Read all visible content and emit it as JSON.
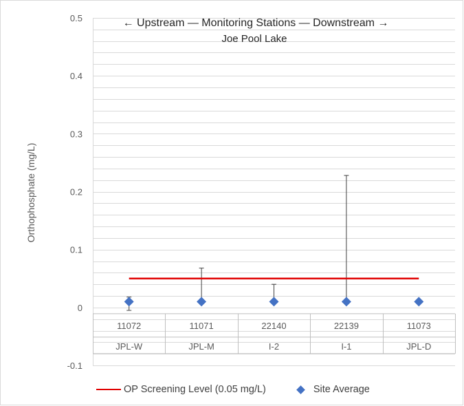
{
  "chart_data": {
    "type": "scatter",
    "title_line1": "← Upstream  —  Monitoring Stations  —  Downstream →",
    "title_line2": "Joe Pool Lake",
    "ylabel": "Orthophosphate (mg/L)",
    "ylim": [
      -0.1,
      0.5
    ],
    "yticks": [
      -0.1,
      0,
      0.1,
      0.2,
      0.3,
      0.4,
      0.5
    ],
    "ytick_labels": [
      "-0.1",
      "0",
      "0.1",
      "0.2",
      "0.3",
      "0.4",
      "0.5"
    ],
    "minor_grid_step": 0.02,
    "grid": true,
    "legend_position": "bottom",
    "categories": [
      "11072",
      "11071",
      "22140",
      "22139",
      "11073"
    ],
    "category_labels": [
      "JPL-W",
      "JPL-M",
      "I-2",
      "I-1",
      "JPL-D"
    ],
    "series": [
      {
        "name": "Site Average",
        "marker": "diamond",
        "color": "#4472c4",
        "values": [
          0.01,
          0.01,
          0.01,
          0.01,
          0.01
        ],
        "error_min": [
          -0.005,
          0.01,
          0.01,
          0.01,
          0.01
        ],
        "error_max": [
          0.018,
          0.068,
          0.04,
          0.228,
          0.01
        ]
      },
      {
        "name": "OP Screening Level (0.05 mg/L)",
        "marker": "line",
        "color": "#e00000",
        "value": 0.05
      }
    ]
  },
  "legend": {
    "items": [
      {
        "label": "OP Screening Level (0.05 mg/L)"
      },
      {
        "label": "Site Average"
      }
    ]
  }
}
